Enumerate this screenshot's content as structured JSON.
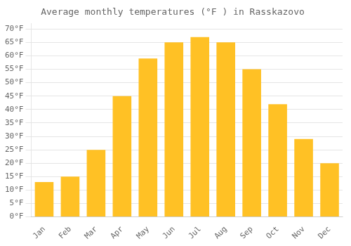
{
  "chart_data": {
    "type": "bar",
    "title": "Average monthly temperatures (°F ) in Rasskazovo",
    "categories": [
      "Jan",
      "Feb",
      "Mar",
      "Apr",
      "May",
      "Jun",
      "Jul",
      "Aug",
      "Sep",
      "Oct",
      "Nov",
      "Dec"
    ],
    "values": [
      13,
      15,
      25,
      45,
      59,
      65,
      67,
      65,
      55,
      42,
      29,
      20
    ],
    "color": "#FFC125",
    "ylim": [
      0,
      72
    ],
    "yticks": [
      {
        "value": 0,
        "label": "0°F"
      },
      {
        "value": 5,
        "label": "5°F"
      },
      {
        "value": 10,
        "label": "10°F"
      },
      {
        "value": 15,
        "label": "15°F"
      },
      {
        "value": 20,
        "label": "20°F"
      },
      {
        "value": 25,
        "label": "25°F"
      },
      {
        "value": 30,
        "label": "30°F"
      },
      {
        "value": 35,
        "label": "35°F"
      },
      {
        "value": 40,
        "label": "40°F"
      },
      {
        "value": 45,
        "label": "45°F"
      },
      {
        "value": 50,
        "label": "50°F"
      },
      {
        "value": 55,
        "label": "55°F"
      },
      {
        "value": 60,
        "label": "60°F"
      },
      {
        "value": 65,
        "label": "65°F"
      },
      {
        "value": 70,
        "label": "70°F"
      }
    ],
    "grid": true
  }
}
